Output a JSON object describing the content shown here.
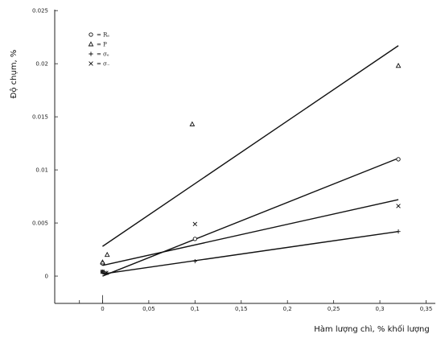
{
  "chart_data": {
    "type": "scatter",
    "title": "",
    "xlabel": "Hàm lượng chì, % khối lượng",
    "ylabel": "Độ chụm, %",
    "xlim": [
      -0.05,
      0.36
    ],
    "ylim": [
      -0.0028,
      0.026
    ],
    "x_ticks": [
      0,
      0.05,
      0.1,
      0.15,
      0.2,
      0.25,
      0.3,
      0.35
    ],
    "x_tick_labels": [
      "0",
      "0,05",
      "0,1",
      "0,15",
      "0,2",
      "0,25",
      "0,3",
      "0,35"
    ],
    "y_ticks": [
      0,
      0.005,
      0.01,
      0.015,
      0.02,
      0.025
    ],
    "y_tick_labels": [
      "0",
      "0.005",
      "0.01",
      "0.015",
      "0.02",
      "0.025"
    ],
    "grid": false,
    "legend_position": "top-left",
    "series": [
      {
        "name": "Rₑ",
        "legend_label": "o = Rₑ",
        "marker": "circle",
        "points": [
          [
            0.0,
            0.0004
          ],
          [
            0.0,
            0.0012
          ],
          [
            0.1,
            0.0035
          ],
          [
            0.32,
            0.011
          ]
        ],
        "fit_line": [
          [
            0.0,
            0.0
          ],
          [
            0.32,
            0.0111
          ]
        ]
      },
      {
        "name": "P",
        "legend_label": "Δ = P",
        "marker": "triangle",
        "points": [
          [
            0.0,
            0.0013
          ],
          [
            0.005,
            0.002
          ],
          [
            0.097,
            0.0143
          ],
          [
            0.32,
            0.0198
          ]
        ],
        "fit_line": [
          [
            0.0,
            0.0028
          ],
          [
            0.32,
            0.0217
          ]
        ]
      },
      {
        "name": "σₑ",
        "legend_label": "+ = σₑ",
        "marker": "plus",
        "points": [
          [
            0.0,
            0.0004
          ],
          [
            0.004,
            0.0003
          ],
          [
            0.1,
            0.0014
          ],
          [
            0.32,
            0.0042
          ]
        ],
        "fit_line": [
          [
            0.0,
            0.0002
          ],
          [
            0.32,
            0.0042
          ]
        ]
      },
      {
        "name": "σ₋",
        "legend_label": "× = σ₋",
        "marker": "cross",
        "points": [
          [
            0.0,
            0.0004
          ],
          [
            0.004,
            0.0003
          ],
          [
            0.1,
            0.0049
          ],
          [
            0.32,
            0.0066
          ]
        ],
        "fit_line": [
          [
            0.0,
            0.001
          ],
          [
            0.32,
            0.0072
          ]
        ]
      }
    ]
  }
}
